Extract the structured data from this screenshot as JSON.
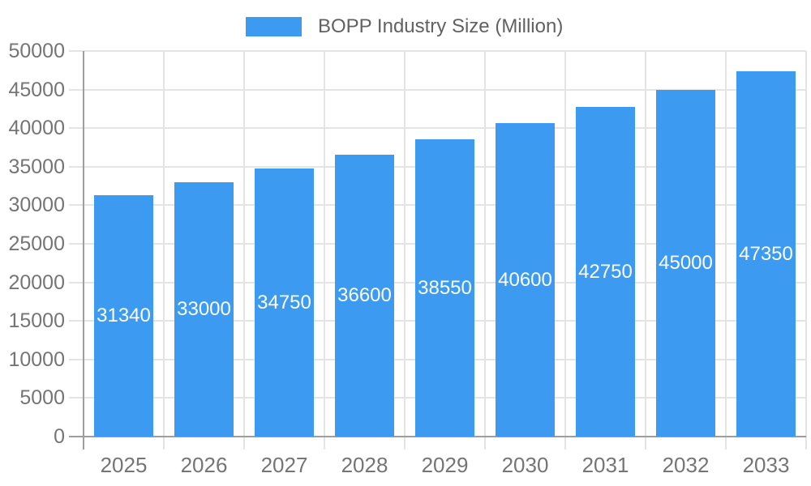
{
  "legend": {
    "label": "BOPP Industry Size (Million)",
    "swatch_icon": "series-color-swatch"
  },
  "colors": {
    "bar": "#3C9AF0",
    "bar_label_text": "#FFFFFF",
    "axis_line": "#9E9E9E",
    "grid_line": "#E4E4E4",
    "axis_text": "#757575",
    "legend_text": "#616161",
    "background": "#FFFFFF"
  },
  "chart_data": {
    "type": "bar",
    "title": "BOPP Industry Size (Million)",
    "series_name": "BOPP Industry Size (Million)",
    "categories": [
      "2025",
      "2026",
      "2027",
      "2028",
      "2029",
      "2030",
      "2031",
      "2032",
      "2033"
    ],
    "values": [
      31340,
      33000,
      34750,
      36600,
      38550,
      40600,
      42750,
      45000,
      47350
    ],
    "bar_labels": [
      31340,
      33000,
      34750,
      36600,
      38550,
      40600,
      42750,
      45000,
      47350
    ],
    "xlabel": "",
    "ylabel": "",
    "ylim": [
      0,
      50000
    ],
    "ytick_step": 5000,
    "yticks": [
      0,
      5000,
      10000,
      15000,
      20000,
      25000,
      30000,
      35000,
      40000,
      45000,
      50000
    ],
    "grid": true,
    "grid_vertical": true,
    "legend_position": "top",
    "bar_label_position": "inside-middle"
  }
}
